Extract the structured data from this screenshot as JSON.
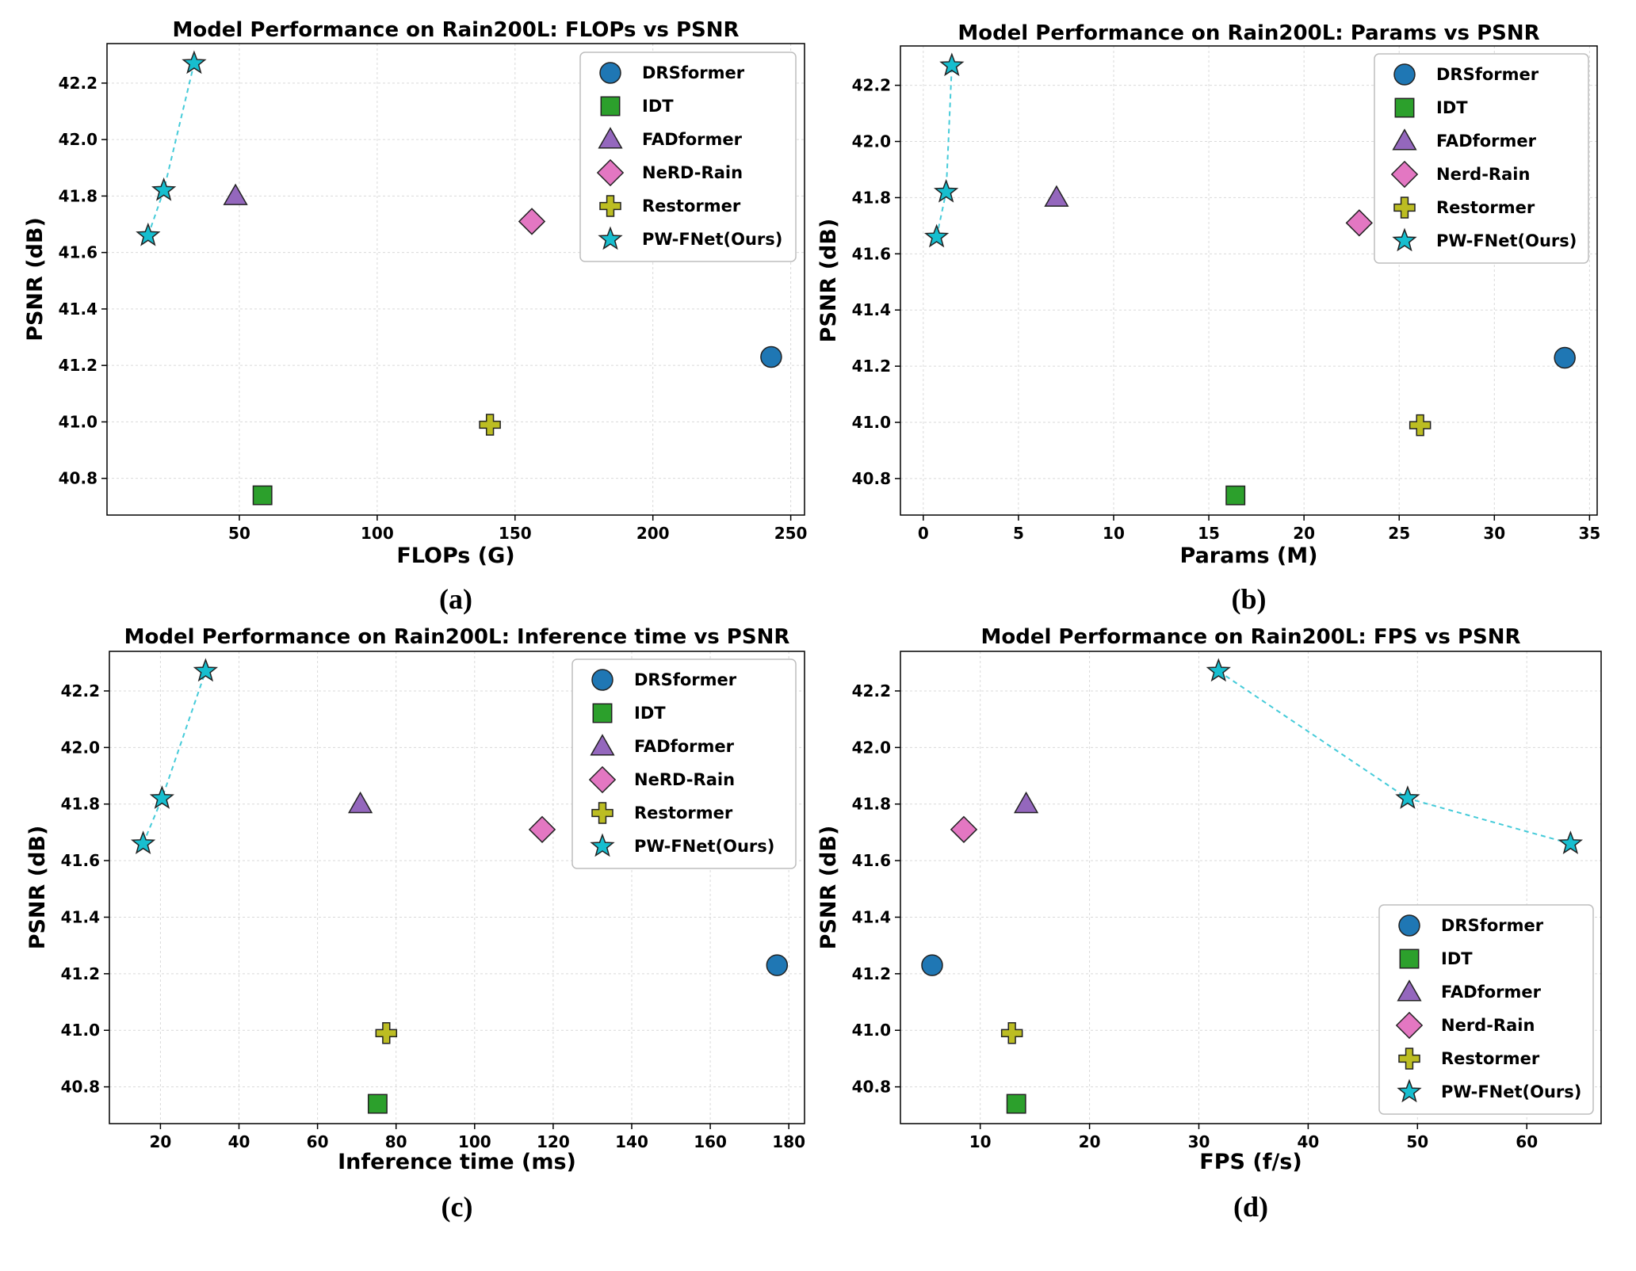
{
  "figure": {
    "marker_colors": {
      "DRSformer": "#1f77b4",
      "IDT": "#2ca02c",
      "FADformer": "#9467bd",
      "NeRD-Rain": "#e377c2",
      "Restormer": "#bcbd22",
      "PW-FNet(Ours)": "#17becf"
    },
    "markers": {
      "DRSformer": "circle",
      "IDT": "square",
      "FADformer": "triangle",
      "NeRD-Rain": "diamond",
      "Restormer": "plus",
      "PW-FNet(Ours)": "star"
    }
  },
  "chart_data": [
    {
      "id": "a",
      "type": "scatter",
      "panel_label": "(a)",
      "title": "Model Performance on Rain200L: FLOPs vs PSNR",
      "xlabel": "FLOPs (G)",
      "ylabel": "PSNR (dB)",
      "xlim": [
        2,
        255
      ],
      "ylim": [
        40.67,
        42.34
      ],
      "xticks": [
        50,
        100,
        150,
        200,
        250
      ],
      "xtick_labels": [
        "50",
        "100",
        "150",
        "200",
        "250"
      ],
      "yticks": [
        40.8,
        41.0,
        41.2,
        41.4,
        41.6,
        41.8,
        42.0,
        42.2
      ],
      "ytick_labels": [
        "40.8",
        "41.0",
        "41.2",
        "41.4",
        "41.6",
        "41.8",
        "42.0",
        "42.2"
      ],
      "grid": true,
      "legend_position": "top-right",
      "series": [
        {
          "name": "DRSformer",
          "points": [
            [
              242.9,
              41.23
            ]
          ]
        },
        {
          "name": "IDT",
          "points": [
            [
              58.4,
              40.74
            ]
          ]
        },
        {
          "name": "FADformer",
          "points": [
            [
              48.6,
              41.8
            ]
          ]
        },
        {
          "name": "NeRD-Rain",
          "points": [
            [
              156.1,
              41.71
            ]
          ]
        },
        {
          "name": "Restormer",
          "points": [
            [
              140.9,
              40.99
            ]
          ]
        },
        {
          "name": "PW-FNet(Ours)",
          "points": [
            [
              16.9,
              41.66
            ],
            [
              22.6,
              41.82
            ],
            [
              33.6,
              42.27
            ]
          ],
          "line": "dashed"
        }
      ]
    },
    {
      "id": "b",
      "type": "scatter",
      "panel_label": "(b)",
      "title": "Model Performance on Rain200L: Params vs PSNR",
      "xlabel": "Params (M)",
      "ylabel": "PSNR (dB)",
      "xlim": [
        -1.2,
        35.4
      ],
      "ylim": [
        40.67,
        42.34
      ],
      "xticks": [
        0,
        5,
        10,
        15,
        20,
        25,
        30,
        35
      ],
      "xtick_labels": [
        "0",
        "5",
        "10",
        "15",
        "20",
        "25",
        "30",
        "35"
      ],
      "yticks": [
        40.8,
        41.0,
        41.2,
        41.4,
        41.6,
        41.8,
        42.0,
        42.2
      ],
      "ytick_labels": [
        "40.8",
        "41.0",
        "41.2",
        "41.4",
        "41.6",
        "41.8",
        "42.0",
        "42.2"
      ],
      "grid": true,
      "legend_position": "top-right",
      "series": [
        {
          "name": "DRSformer",
          "points": [
            [
              33.7,
              41.23
            ]
          ]
        },
        {
          "name": "IDT",
          "points": [
            [
              16.4,
              40.74
            ]
          ]
        },
        {
          "name": "FADformer",
          "points": [
            [
              7.0,
              41.8
            ]
          ]
        },
        {
          "name": "Nerd-Rain",
          "points": [
            [
              22.9,
              41.71
            ]
          ]
        },
        {
          "name": "Restormer",
          "points": [
            [
              26.1,
              40.99
            ]
          ]
        },
        {
          "name": "PW-FNet(Ours)",
          "points": [
            [
              0.7,
              41.66
            ],
            [
              1.2,
              41.82
            ],
            [
              1.5,
              42.27
            ]
          ],
          "line": "dashed"
        }
      ]
    },
    {
      "id": "c",
      "type": "scatter",
      "panel_label": "(c)",
      "title": "Model Performance on Rain200L: Inference time vs PSNR",
      "xlabel": "Inference time (ms)",
      "ylabel": "PSNR (dB)",
      "xlim": [
        7,
        184
      ],
      "ylim": [
        40.67,
        42.34
      ],
      "xticks": [
        20,
        40,
        60,
        80,
        100,
        120,
        140,
        160,
        180
      ],
      "xtick_labels": [
        "20",
        "40",
        "60",
        "80",
        "100",
        "120",
        "140",
        "160",
        "180"
      ],
      "yticks": [
        40.8,
        41.0,
        41.2,
        41.4,
        41.6,
        41.8,
        42.0,
        42.2
      ],
      "ytick_labels": [
        "40.8",
        "41.0",
        "41.2",
        "41.4",
        "41.6",
        "41.8",
        "42.0",
        "42.2"
      ],
      "grid": true,
      "legend_position": "top-right",
      "series": [
        {
          "name": "DRSformer",
          "points": [
            [
              177.0,
              41.23
            ]
          ]
        },
        {
          "name": "IDT",
          "points": [
            [
              75.3,
              40.74
            ]
          ]
        },
        {
          "name": "FADformer",
          "points": [
            [
              70.9,
              41.8
            ]
          ]
        },
        {
          "name": "NeRD-Rain",
          "points": [
            [
              117.2,
              41.71
            ]
          ]
        },
        {
          "name": "Restormer",
          "points": [
            [
              77.5,
              40.99
            ]
          ]
        },
        {
          "name": "PW-FNet(Ours)",
          "points": [
            [
              15.6,
              41.66
            ],
            [
              20.4,
              41.82
            ],
            [
              31.5,
              42.27
            ]
          ],
          "line": "dashed"
        }
      ]
    },
    {
      "id": "d",
      "type": "scatter",
      "panel_label": "(d)",
      "title": "Model Performance on Rain200L: FPS vs PSNR",
      "xlabel": "FPS (f/s)",
      "ylabel": "PSNR (dB)",
      "xlim": [
        2.7,
        66.8
      ],
      "ylim": [
        40.67,
        42.34
      ],
      "xticks": [
        10,
        20,
        30,
        40,
        50,
        60
      ],
      "xtick_labels": [
        "10",
        "20",
        "30",
        "40",
        "50",
        "60"
      ],
      "yticks": [
        40.8,
        41.0,
        41.2,
        41.4,
        41.6,
        41.8,
        42.0,
        42.2
      ],
      "ytick_labels": [
        "40.8",
        "41.0",
        "41.2",
        "41.4",
        "41.6",
        "41.8",
        "42.0",
        "42.2"
      ],
      "grid": true,
      "legend_position": "lower-right",
      "series": [
        {
          "name": "DRSformer",
          "points": [
            [
              5.6,
              41.23
            ]
          ]
        },
        {
          "name": "IDT",
          "points": [
            [
              13.3,
              40.74
            ]
          ]
        },
        {
          "name": "FADformer",
          "points": [
            [
              14.2,
              41.8
            ]
          ]
        },
        {
          "name": "Nerd-Rain",
          "points": [
            [
              8.5,
              41.71
            ]
          ]
        },
        {
          "name": "Restormer",
          "points": [
            [
              12.9,
              40.99
            ]
          ]
        },
        {
          "name": "PW-FNet(Ours)",
          "points": [
            [
              31.8,
              42.27
            ],
            [
              49.1,
              41.82
            ],
            [
              64.0,
              41.66
            ]
          ],
          "line": "dashed"
        }
      ]
    }
  ]
}
